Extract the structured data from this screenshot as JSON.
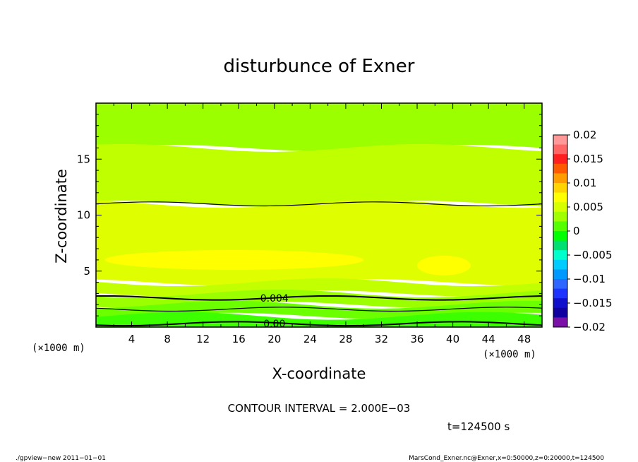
{
  "chart_data": {
    "type": "heatmap",
    "title": "disturbunce of Exner",
    "xlabel": "X-coordinate",
    "ylabel": "Z-coordinate",
    "x_unit_left": "(×1000 m)",
    "x_unit_right": "(×1000 m)",
    "xlim": [
      0,
      50
    ],
    "ylim": [
      0,
      20
    ],
    "x_ticks": [
      "4",
      "8",
      "12",
      "16",
      "20",
      "24",
      "28",
      "32",
      "36",
      "40",
      "44",
      "48"
    ],
    "y_ticks": [
      "5",
      "10",
      "15"
    ],
    "x_tick_values": [
      4,
      8,
      12,
      16,
      20,
      24,
      28,
      32,
      36,
      40,
      44,
      48
    ],
    "y_tick_values": [
      5,
      10,
      15
    ],
    "colorbar": {
      "min": -0.02,
      "max": 0.02,
      "labels": [
        "0.02",
        "0.015",
        "0.01",
        "0.005",
        "0",
        "−0.005",
        "−0.01",
        "−0.015",
        "−0.02"
      ],
      "label_values": [
        0.02,
        0.015,
        0.01,
        0.005,
        0,
        -0.005,
        -0.01,
        -0.015,
        -0.02
      ],
      "colors": [
        "#ff9999",
        "#ff6666",
        "#ff1f1f",
        "#ff5a00",
        "#ff9c00",
        "#ffd400",
        "#ffff00",
        "#d6ff00",
        "#a0ff00",
        "#55ff00",
        "#00ff00",
        "#00e070",
        "#00ffcc",
        "#00ccff",
        "#0099ff",
        "#2f66ff",
        "#1f33ff",
        "#1010cc",
        "#1000a0",
        "#7a10a8"
      ]
    },
    "bands": [
      {
        "z_range": [
          16,
          20
        ],
        "value": 0.0035,
        "color": "#9cff00"
      },
      {
        "z_range": [
          11,
          16
        ],
        "value": 0.0045,
        "color": "#bfff00"
      },
      {
        "z_range": [
          4,
          11
        ],
        "value": 0.0055,
        "color": "#dfff00"
      },
      {
        "z_range": [
          3,
          4
        ],
        "value": 0.0045,
        "color": "#c2ff00"
      },
      {
        "z_range": [
          2,
          3
        ],
        "value": 0.0035,
        "color": "#9cff00"
      },
      {
        "z_range": [
          1,
          2
        ],
        "value": 0.002,
        "color": "#6cff00"
      },
      {
        "z_range": [
          0,
          1
        ],
        "value": 0.0005,
        "color": "#3cff00"
      }
    ],
    "maxima_regions": [
      {
        "x_range": [
          1,
          30
        ],
        "z_center": 6,
        "value": 0.0065,
        "color": "#ffff00"
      },
      {
        "x_range": [
          36,
          42
        ],
        "z_center": 5.5,
        "value": 0.0065,
        "color": "#ffff00"
      }
    ],
    "contours": [
      {
        "value": 0.006,
        "z_approx": 11,
        "label": ""
      },
      {
        "value": 0.004,
        "z_approx": 2.6,
        "label": "0.004"
      },
      {
        "value": 0.002,
        "z_approx": 1.6,
        "label": ""
      },
      {
        "value": 0.0,
        "z_approx": 0.3,
        "label": "0.00"
      }
    ],
    "grid": false,
    "legend": "colorbar-right"
  },
  "contour_interval": "CONTOUR INTERVAL = 2.000E−03",
  "time_label": "t=124500 s",
  "footer_left": "./gpview−new  2011−01−01",
  "footer_right": "MarsCond_Exner.nc@Exner,x=0:50000,z=0:20000,t=124500"
}
